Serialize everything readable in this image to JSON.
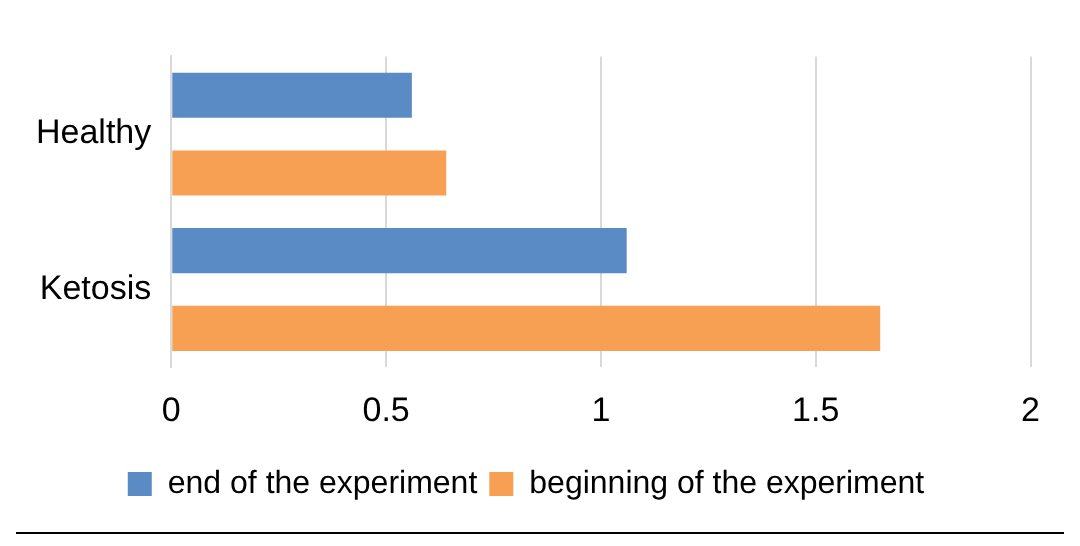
{
  "chart_data": {
    "type": "bar",
    "orientation": "horizontal",
    "categories": [
      "Healthy",
      "Ketosis"
    ],
    "series": [
      {
        "name": "end of the experiment",
        "color": "#5b8bc5",
        "values": [
          0.56,
          1.06
        ]
      },
      {
        "name": "beginning of the experiment",
        "color": "#f79f52",
        "values": [
          0.64,
          1.65
        ]
      }
    ],
    "xlim": [
      0,
      2
    ],
    "xticks": [
      0,
      0.5,
      1,
      1.5,
      2
    ],
    "grid": "x",
    "legend": "bottom"
  }
}
